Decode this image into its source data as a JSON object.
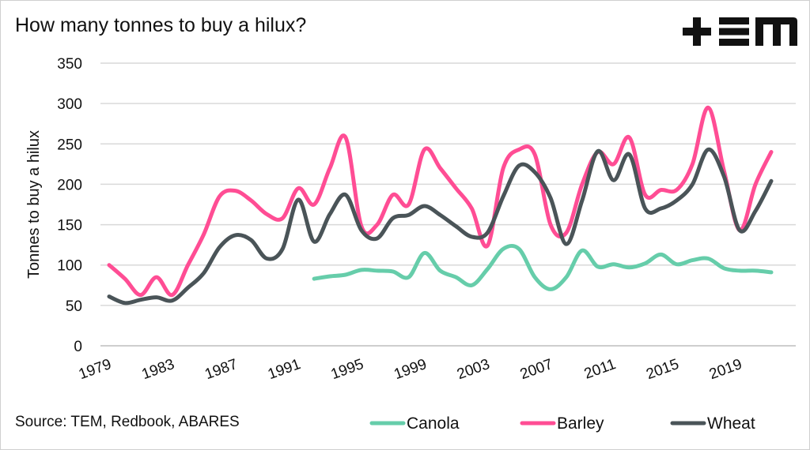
{
  "title": "How many tonnes to buy a hilux?",
  "source": "Source: TEM, Redbook, ABARES",
  "logo": "TEM",
  "chart_data": {
    "type": "line",
    "title": "How many tonnes to buy a hilux?",
    "xlabel": "",
    "ylabel": "Tonnes to buy a hilux",
    "ylim": [
      0,
      350
    ],
    "yticks": [
      0,
      50,
      100,
      150,
      200,
      250,
      300,
      350
    ],
    "xticks": [
      "1979",
      "1983",
      "1987",
      "1991",
      "1995",
      "1999",
      "2003",
      "2007",
      "2011",
      "2015",
      "2019"
    ],
    "x": [
      1979,
      1980,
      1981,
      1982,
      1983,
      1984,
      1985,
      1986,
      1987,
      1988,
      1989,
      1990,
      1991,
      1992,
      1993,
      1994,
      1995,
      1996,
      1997,
      1998,
      1999,
      2000,
      2001,
      2002,
      2003,
      2004,
      2005,
      2006,
      2007,
      2008,
      2009,
      2010,
      2011,
      2012,
      2013,
      2014,
      2015,
      2016,
      2017,
      2018,
      2019,
      2020,
      2021
    ],
    "grid": true,
    "legend_position": "bottom",
    "series": [
      {
        "name": "Canola",
        "color": "#66cdaa",
        "values": [
          null,
          null,
          null,
          null,
          null,
          null,
          null,
          null,
          null,
          null,
          null,
          null,
          null,
          83,
          86,
          88,
          94,
          93,
          92,
          85,
          115,
          93,
          85,
          75,
          95,
          120,
          120,
          85,
          70,
          85,
          118,
          98,
          101,
          97,
          102,
          113,
          101,
          106,
          108,
          96,
          93,
          93,
          91
        ]
      },
      {
        "name": "Barley",
        "color": "#ff4d94",
        "values": [
          100,
          83,
          63,
          85,
          63,
          100,
          138,
          185,
          192,
          180,
          163,
          158,
          195,
          175,
          220,
          258,
          148,
          150,
          187,
          175,
          243,
          220,
          195,
          170,
          124,
          220,
          243,
          237,
          150,
          140,
          200,
          240,
          225,
          258,
          187,
          193,
          193,
          225,
          295,
          217,
          143,
          200,
          240
        ]
      },
      {
        "name": "Wheat",
        "color": "#4a5458",
        "values": [
          61,
          53,
          57,
          60,
          56,
          72,
          90,
          122,
          137,
          131,
          108,
          120,
          181,
          129,
          163,
          187,
          143,
          133,
          158,
          162,
          173,
          162,
          148,
          135,
          140,
          185,
          223,
          215,
          183,
          126,
          180,
          241,
          205,
          237,
          170,
          170,
          180,
          200,
          243,
          210,
          143,
          167,
          204
        ]
      }
    ]
  }
}
